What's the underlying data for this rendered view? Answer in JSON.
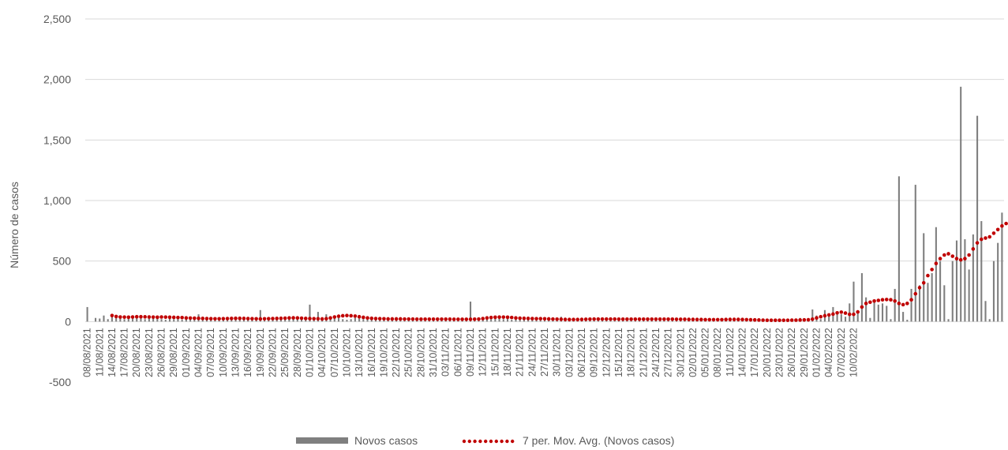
{
  "chart_data": {
    "type": "bar",
    "title": "",
    "xlabel": "",
    "ylabel": "Número de casos",
    "ylim": [
      -500,
      2500
    ],
    "yticks": [
      "2,500",
      "2,000",
      "1,500",
      "1,000",
      "500",
      "0",
      "-500"
    ],
    "ytick_values": [
      2500,
      2000,
      1500,
      1000,
      500,
      0,
      -500
    ],
    "grid": true,
    "legend_position": "bottom",
    "colors": {
      "bars": "#7f7f7f",
      "moving_average": "#c00000",
      "grid": "#d9d9d9",
      "text": "#595959"
    },
    "date_start": "08/08/2021",
    "x_tick_labels": [
      "08/08/2021",
      "11/08/2021",
      "14/08/2021",
      "17/08/2021",
      "20/08/2021",
      "23/08/2021",
      "26/08/2021",
      "29/08/2021",
      "01/09/2021",
      "04/09/2021",
      "07/09/2021",
      "10/09/2021",
      "13/09/2021",
      "16/09/2021",
      "19/09/2021",
      "22/09/2021",
      "25/09/2021",
      "28/09/2021",
      "01/10/2021",
      "04/10/2021",
      "07/10/2021",
      "10/10/2021",
      "13/10/2021",
      "16/10/2021",
      "19/10/2021",
      "22/10/2021",
      "25/10/2021",
      "28/10/2021",
      "31/10/2021",
      "03/11/2021",
      "06/11/2021",
      "09/11/2021",
      "12/11/2021",
      "15/11/2021",
      "18/11/2021",
      "21/11/2021",
      "24/11/2021",
      "27/11/2021",
      "30/11/2021",
      "03/12/2021",
      "06/12/2021",
      "09/12/2021",
      "12/12/2021",
      "15/12/2021",
      "18/12/2021",
      "21/12/2021",
      "24/12/2021",
      "27/12/2021",
      "30/12/2021",
      "02/01/2022",
      "05/01/2022",
      "08/01/2022",
      "11/01/2022",
      "14/01/2022",
      "17/01/2022",
      "20/01/2022",
      "23/01/2022",
      "26/01/2022",
      "29/01/2022",
      "01/02/2022",
      "04/02/2022",
      "07/02/2022",
      "10/02/2022"
    ],
    "series": [
      {
        "name": "Novos casos",
        "type": "bar",
        "values": [
          120,
          0,
          30,
          25,
          50,
          20,
          40,
          30,
          35,
          20,
          30,
          25,
          40,
          30,
          20,
          35,
          25,
          30,
          20,
          15,
          30,
          20,
          25,
          15,
          20,
          30,
          25,
          60,
          20,
          25,
          30,
          20,
          15,
          20,
          30,
          25,
          20,
          30,
          25,
          20,
          15,
          35,
          95,
          20,
          30,
          25,
          20,
          30,
          35,
          20,
          25,
          30,
          20,
          15,
          140,
          20,
          80,
          30,
          60,
          40,
          25,
          30,
          20,
          15,
          20,
          30,
          25,
          20,
          15,
          30,
          20,
          25,
          20,
          15,
          20,
          30,
          25,
          20,
          35,
          20,
          15,
          20,
          25,
          30,
          20,
          15,
          20,
          30,
          25,
          20,
          25,
          15,
          20,
          165,
          20,
          30,
          25,
          40,
          20,
          30,
          25,
          20,
          30,
          15,
          20,
          25,
          20,
          15,
          20,
          25,
          10,
          20,
          15,
          20,
          30,
          40,
          15,
          20,
          25,
          30,
          20,
          25,
          15,
          20,
          30,
          20,
          25,
          15,
          20,
          20,
          25,
          15,
          20,
          30,
          25,
          20,
          25,
          15,
          20,
          20,
          25,
          15,
          20,
          25,
          15,
          20,
          15,
          20,
          25,
          15,
          20,
          10,
          15,
          20,
          25,
          30,
          20,
          15,
          25,
          20,
          15,
          10,
          15,
          20,
          5,
          10,
          15,
          20,
          10,
          15,
          5,
          10,
          15,
          30,
          5,
          10,
          100,
          50,
          20,
          95,
          60,
          120,
          70,
          60,
          40,
          150,
          330,
          80,
          400,
          200,
          30,
          180,
          140,
          150,
          130,
          20,
          270,
          1200,
          80,
          15,
          270,
          1130,
          300,
          730,
          320,
          400,
          780,
          500,
          300,
          20,
          500,
          670,
          1940,
          680,
          430,
          720,
          1700,
          830,
          170,
          20,
          500,
          650,
          900
        ],
        "note_values": ""
      },
      {
        "name": "7 per. Mov. Avg. (Novos casos)",
        "type": "line",
        "start_index": 6,
        "values": [
          50,
          42,
          38,
          37,
          36,
          38,
          40,
          40,
          39,
          38,
          37,
          36,
          38,
          37,
          36,
          35,
          34,
          33,
          30,
          29,
          28,
          27,
          26,
          25,
          24,
          23,
          23,
          24,
          25,
          26,
          27,
          27,
          26,
          25,
          24,
          23,
          22,
          23,
          24,
          25,
          26,
          27,
          28,
          30,
          31,
          30,
          28,
          26,
          25,
          24,
          23,
          22,
          24,
          30,
          38,
          44,
          48,
          50,
          48,
          45,
          40,
          35,
          30,
          27,
          25,
          24,
          23,
          22,
          22,
          22,
          22,
          21,
          21,
          21,
          20,
          20,
          20,
          20,
          20,
          20,
          20,
          20,
          20,
          19,
          19,
          19,
          19,
          19,
          20,
          21,
          25,
          30,
          34,
          36,
          37,
          37,
          36,
          34,
          30,
          28,
          27,
          26,
          25,
          24,
          24,
          23,
          22,
          21,
          20,
          19,
          18,
          17,
          17,
          17,
          18,
          19,
          20,
          21,
          21,
          21,
          21,
          21,
          21,
          20,
          20,
          20,
          20,
          20,
          20,
          20,
          20,
          20,
          20,
          20,
          20,
          20,
          20,
          19,
          19,
          19,
          18,
          18,
          17,
          17,
          16,
          16,
          16,
          16,
          16,
          17,
          18,
          18,
          18,
          17,
          16,
          15,
          14,
          13,
          12,
          11,
          11,
          11,
          11,
          11,
          11,
          12,
          12,
          13,
          14,
          15,
          20,
          30,
          40,
          48,
          55,
          62,
          72,
          78,
          70,
          60,
          60,
          80,
          120,
          150,
          160,
          170,
          175,
          180,
          182,
          180,
          170,
          150,
          140,
          150,
          180,
          230,
          280,
          320,
          380,
          430,
          480,
          520,
          550,
          560,
          540,
          520,
          510,
          520,
          550,
          600,
          650,
          680,
          690,
          700,
          730,
          760,
          790,
          810,
          800,
          760,
          700,
          650,
          680
        ]
      }
    ]
  }
}
